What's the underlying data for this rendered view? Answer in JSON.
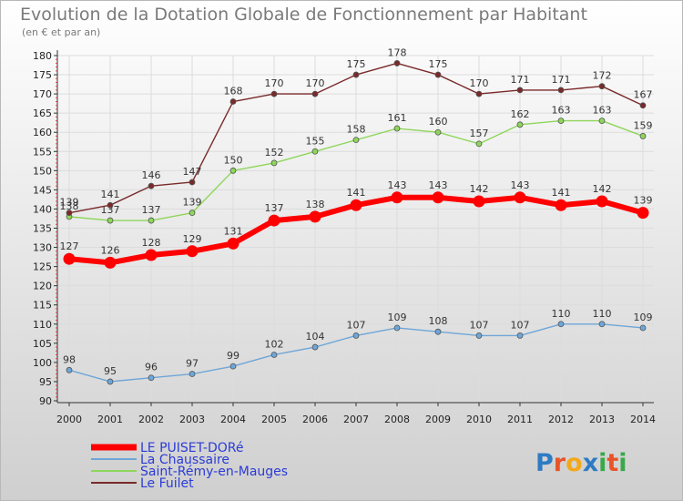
{
  "chart_data": {
    "type": "line",
    "title": "Evolution de la Dotation Globale de Fonctionnement par Habitant",
    "subtitle": "(en € et par an)",
    "x": [
      "2000",
      "2001",
      "2002",
      "2003",
      "2004",
      "2005",
      "2006",
      "2007",
      "2008",
      "2009",
      "2010",
      "2011",
      "2012",
      "2013",
      "2014"
    ],
    "ylim": [
      90,
      180
    ],
    "yticks": [
      90,
      95,
      100,
      105,
      110,
      115,
      120,
      125,
      130,
      135,
      140,
      145,
      150,
      155,
      160,
      165,
      170,
      175,
      180
    ],
    "grid": true,
    "legend_position": "bottom-left",
    "series": [
      {
        "name": "LE PUISET-DORé",
        "color": "#ff0000",
        "values": [
          127,
          126,
          128,
          129,
          131,
          137,
          138,
          141,
          143,
          143,
          142,
          143,
          141,
          142,
          139
        ]
      },
      {
        "name": "La Chaussaire",
        "color": "#6ea6d8",
        "values": [
          98,
          95,
          96,
          97,
          99,
          102,
          104,
          107,
          109,
          108,
          107,
          107,
          110,
          110,
          109
        ]
      },
      {
        "name": "Saint-Rémy-en-Mauges",
        "color": "#8ed65a",
        "values": [
          138,
          137,
          137,
          139,
          150,
          152,
          155,
          158,
          161,
          160,
          157,
          162,
          163,
          163,
          159
        ]
      },
      {
        "name": "Le Fuilet",
        "color": "#7a2a2a",
        "values": [
          139,
          141,
          146,
          147,
          168,
          170,
          170,
          175,
          178,
          175,
          170,
          171,
          171,
          172,
          167
        ]
      }
    ]
  },
  "brand": {
    "text": "Proxiti",
    "letters": [
      "P",
      "r",
      "o",
      "x",
      "i",
      "t",
      "i"
    ]
  }
}
